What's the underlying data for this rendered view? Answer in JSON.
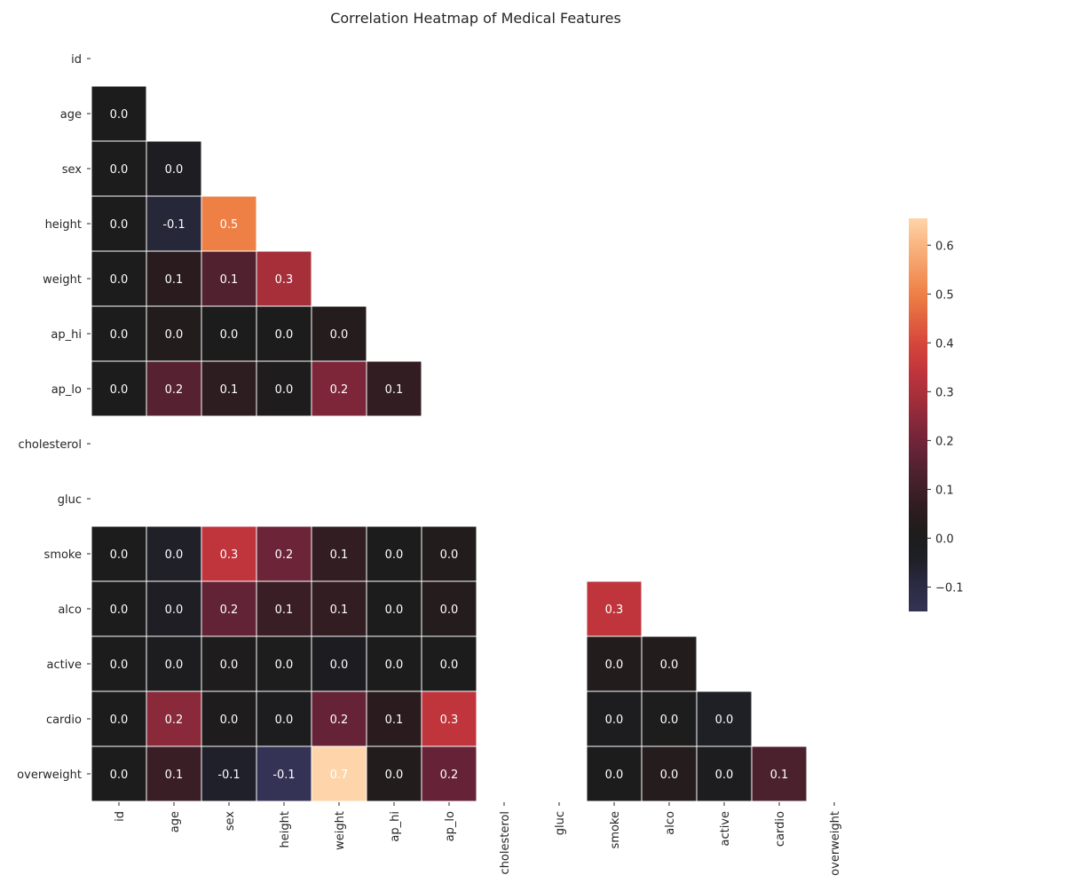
{
  "chart_data": {
    "type": "heatmap",
    "title": "Correlation Heatmap of Medical Features",
    "xlabel": "",
    "ylabel": "",
    "labels": [
      "id",
      "age",
      "sex",
      "height",
      "weight",
      "ap_hi",
      "ap_lo",
      "cholesterol",
      "gluc",
      "smoke",
      "alco",
      "active",
      "cardio",
      "overweight"
    ],
    "mask": "upper-triangle-and-diagonal",
    "values": [
      [
        null,
        null,
        null,
        null,
        null,
        null,
        null,
        null,
        null,
        null,
        null,
        null,
        null,
        null
      ],
      [
        0.0,
        null,
        null,
        null,
        null,
        null,
        null,
        null,
        null,
        null,
        null,
        null,
        null,
        null
      ],
      [
        0.0,
        -0.0,
        null,
        null,
        null,
        null,
        null,
        null,
        null,
        null,
        null,
        null,
        null,
        null
      ],
      [
        0.0,
        -0.1,
        0.5,
        null,
        null,
        null,
        null,
        null,
        null,
        null,
        null,
        null,
        null,
        null
      ],
      [
        0.0,
        0.1,
        0.1,
        0.3,
        null,
        null,
        null,
        null,
        null,
        null,
        null,
        null,
        null,
        null
      ],
      [
        0.0,
        0.0,
        0.0,
        0.0,
        0.0,
        null,
        null,
        null,
        null,
        null,
        null,
        null,
        null,
        null
      ],
      [
        0.0,
        0.2,
        0.1,
        0.0,
        0.2,
        0.1,
        null,
        null,
        null,
        null,
        null,
        null,
        null,
        null
      ],
      [
        null,
        null,
        null,
        null,
        null,
        null,
        null,
        null,
        null,
        null,
        null,
        null,
        null,
        null
      ],
      [
        null,
        null,
        null,
        null,
        null,
        null,
        null,
        null,
        null,
        null,
        null,
        null,
        null,
        null
      ],
      [
        -0.0,
        -0.0,
        0.3,
        0.2,
        0.1,
        -0.0,
        0.0,
        null,
        null,
        null,
        null,
        null,
        null,
        null
      ],
      [
        -0.0,
        -0.0,
        0.2,
        0.1,
        0.1,
        0.0,
        0.0,
        null,
        null,
        0.3,
        null,
        null,
        null,
        null
      ],
      [
        0.0,
        -0.0,
        0.0,
        -0.0,
        -0.0,
        -0.0,
        0.0,
        null,
        null,
        0.0,
        0.0,
        null,
        null,
        null
      ],
      [
        0.0,
        0.2,
        0.0,
        -0.0,
        0.2,
        0.1,
        0.3,
        null,
        null,
        -0.0,
        -0.0,
        -0.0,
        null,
        null
      ],
      [
        -0.0,
        0.1,
        -0.1,
        -0.1,
        0.7,
        0.0,
        0.2,
        null,
        null,
        -0.0,
        0.0,
        -0.0,
        0.1,
        null
      ]
    ],
    "color_values": [
      [
        null,
        null,
        null,
        null,
        null,
        null,
        null,
        null,
        null,
        null,
        null,
        null,
        null,
        null
      ],
      [
        0.003,
        null,
        null,
        null,
        null,
        null,
        null,
        null,
        null,
        null,
        null,
        null,
        null,
        null
      ],
      [
        0.003,
        -0.023,
        null,
        null,
        null,
        null,
        null,
        null,
        null,
        null,
        null,
        null,
        null,
        null
      ],
      [
        0.0,
        -0.08,
        0.5,
        null,
        null,
        null,
        null,
        null,
        null,
        null,
        null,
        null,
        null,
        null
      ],
      [
        0.0,
        0.05,
        0.14,
        0.29,
        null,
        null,
        null,
        null,
        null,
        null,
        null,
        null,
        null,
        null
      ],
      [
        0.003,
        0.02,
        0.005,
        0.005,
        0.03,
        null,
        null,
        null,
        null,
        null,
        null,
        null,
        null,
        null
      ],
      [
        0.0,
        0.15,
        0.06,
        0.006,
        0.22,
        0.07,
        null,
        null,
        null,
        null,
        null,
        null,
        null,
        null
      ],
      [
        null,
        null,
        null,
        null,
        null,
        null,
        null,
        null,
        null,
        null,
        null,
        null,
        null,
        null
      ],
      [
        null,
        null,
        null,
        null,
        null,
        null,
        null,
        null,
        null,
        null,
        null,
        null,
        null,
        null
      ],
      [
        -0.003,
        -0.048,
        0.34,
        0.19,
        0.07,
        -0.001,
        0.02,
        null,
        null,
        null,
        null,
        null,
        null,
        null
      ],
      [
        -0.003,
        -0.03,
        0.17,
        0.09,
        0.07,
        0.001,
        0.03,
        null,
        null,
        0.34,
        null,
        null,
        null,
        null
      ],
      [
        0.004,
        -0.01,
        0.006,
        -0.007,
        -0.017,
        -0.001,
        0.004,
        null,
        null,
        0.025,
        0.025,
        null,
        null,
        null
      ],
      [
        0.004,
        0.24,
        0.008,
        -0.01,
        0.18,
        0.05,
        0.34,
        null,
        null,
        -0.016,
        -0.007,
        -0.036,
        null,
        null
      ],
      [
        -0.002,
        0.09,
        -0.05,
        -0.15,
        0.66,
        0.02,
        0.18,
        null,
        null,
        -0.005,
        0.03,
        -0.012,
        0.13,
        null
      ]
    ],
    "colorbar": {
      "min": -0.15,
      "max": 0.655,
      "ticks": [
        -0.1,
        0.0,
        0.1,
        0.2,
        0.3,
        0.4,
        0.5,
        0.6
      ],
      "tick_labels": [
        "−0.1",
        "0.0",
        "0.1",
        "0.2",
        "0.3",
        "0.4",
        "0.5",
        "0.6"
      ],
      "colormap": "icefire-like centered at 0"
    },
    "grid": false,
    "legend": "colorbar-right"
  }
}
